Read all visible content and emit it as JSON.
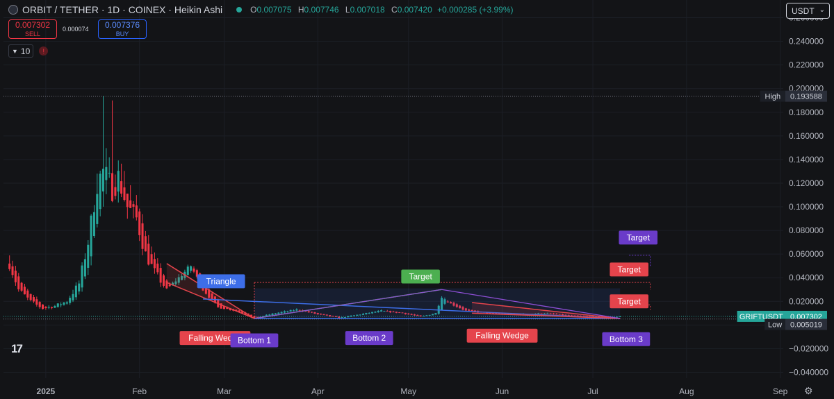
{
  "header": {
    "symbol": "ORBIT / TETHER · 1D · COINEX · Heikin Ashi",
    "o_label": "O",
    "o_value": "0.007075",
    "h_label": "H",
    "h_value": "0.007746",
    "l_label": "L",
    "l_value": "0.007018",
    "c_label": "C",
    "c_value": "0.007420",
    "change": "+0.000285 (+3.99%)"
  },
  "trade": {
    "sell_price": "0.007302",
    "sell_label": "SELL",
    "spread": "0.000074",
    "buy_price": "0.007376",
    "buy_label": "BUY"
  },
  "indicator": {
    "value": "10",
    "warning_icon": "warning-icon"
  },
  "currency": {
    "selected": "USDT"
  },
  "colors": {
    "up": "#26a69a",
    "down": "#f23645",
    "falling_wedge": "#e5444c",
    "triangle": "#3d6ee8",
    "target_green": "#4caf50",
    "bottom_purple": "#6a3bc9",
    "target_purple": "#6a3bc9"
  },
  "chart_data": {
    "type": "candlestick",
    "style": "Heikin Ashi",
    "timeframe": "1D",
    "y_ticks": [
      0.26,
      0.24,
      0.22,
      0.2,
      0.18,
      0.16,
      0.14,
      0.12,
      0.1,
      0.08,
      0.06,
      0.04,
      0.02,
      0,
      -0.02,
      -0.04
    ],
    "y_tick_labels": [
      "0.260000",
      "0.240000",
      "0.220000",
      "0.200000",
      "0.180000",
      "0.160000",
      "0.140000",
      "0.120000",
      "0.100000",
      "0.080000",
      "0.060000",
      "0.040000",
      "0.020000",
      "0.000000",
      "−0.020000",
      "−0.040000"
    ],
    "ylim": [
      -0.045,
      0.275
    ],
    "x_range": [
      "2024-12-18",
      "2025-09-02"
    ],
    "x_ticks": [
      {
        "date": "2025-01-01",
        "label": "2025"
      },
      {
        "date": "2025-02-01",
        "label": "Feb"
      },
      {
        "date": "2025-03-01",
        "label": "Mar"
      },
      {
        "date": "2025-04-01",
        "label": "Apr"
      },
      {
        "date": "2025-05-01",
        "label": "May"
      },
      {
        "date": "2025-06-01",
        "label": "Jun"
      },
      {
        "date": "2025-07-01",
        "label": "Jul"
      },
      {
        "date": "2025-08-01",
        "label": "Aug"
      },
      {
        "date": "2025-09-01",
        "label": "Sep"
      }
    ],
    "high": {
      "label": "High",
      "value": 0.193588,
      "value_text": "0.193588"
    },
    "low": {
      "label": "Low",
      "value": 0.005019,
      "value_text": "0.005019"
    },
    "last": {
      "label": "GRIFTUSDT",
      "value": 0.007302,
      "value_text": "0.007302"
    },
    "anchors": [
      [
        "2024-12-20",
        0.052
      ],
      [
        "2024-12-23",
        0.03
      ],
      [
        "2024-12-27",
        0.02
      ],
      [
        "2024-12-31",
        0.014
      ],
      [
        "2025-01-04",
        0.016
      ],
      [
        "2025-01-08",
        0.02
      ],
      [
        "2025-01-12",
        0.035
      ],
      [
        "2025-01-15",
        0.07
      ],
      [
        "2025-01-18",
        0.12
      ],
      [
        "2025-01-20",
        0.13
      ],
      [
        "2025-01-23",
        0.115
      ],
      [
        "2025-01-25",
        0.125
      ],
      [
        "2025-01-28",
        0.1
      ],
      [
        "2025-01-31",
        0.09
      ],
      [
        "2025-02-03",
        0.06
      ],
      [
        "2025-02-06",
        0.045
      ],
      [
        "2025-02-10",
        0.03
      ],
      [
        "2025-02-14",
        0.04
      ],
      [
        "2025-02-18",
        0.05
      ],
      [
        "2025-02-22",
        0.03
      ],
      [
        "2025-02-27",
        0.015
      ],
      [
        "2025-03-05",
        0.012
      ],
      [
        "2025-03-11",
        0.006
      ],
      [
        "2025-03-18",
        0.01
      ],
      [
        "2025-03-25",
        0.013
      ],
      [
        "2025-04-01",
        0.009
      ],
      [
        "2025-04-08",
        0.006
      ],
      [
        "2025-04-15",
        0.009
      ],
      [
        "2025-04-22",
        0.012
      ],
      [
        "2025-04-29",
        0.01
      ],
      [
        "2025-05-05",
        0.007
      ],
      [
        "2025-05-10",
        0.01
      ],
      [
        "2025-05-12",
        0.024
      ],
      [
        "2025-05-15",
        0.018
      ],
      [
        "2025-05-20",
        0.012
      ],
      [
        "2025-05-27",
        0.01
      ],
      [
        "2025-06-05",
        0.009
      ],
      [
        "2025-06-15",
        0.01
      ],
      [
        "2025-06-22",
        0.008
      ],
      [
        "2025-06-30",
        0.007
      ],
      [
        "2025-07-06",
        0.0065
      ],
      [
        "2025-07-10",
        0.0073
      ]
    ],
    "patterns": [
      {
        "label": "Falling Wedge",
        "type": "falling-wedge",
        "color": "#e5444c",
        "lines": [
          [
            [
              "2025-02-10",
              0.052
            ],
            [
              "2025-03-11",
              0.0055
            ]
          ],
          [
            [
              "2025-02-10",
              0.036
            ],
            [
              "2025-03-11",
              0.0055
            ]
          ]
        ],
        "fill": true,
        "label_at": [
          "2025-02-26",
          -0.011
        ]
      },
      {
        "label": "Triangle",
        "type": "triangle",
        "color": "#3d6ee8",
        "lines": [
          [
            [
              "2025-02-22",
              0.022
            ],
            [
              "2025-07-10",
              0.0055
            ]
          ],
          [
            [
              "2025-03-11",
              0.0055
            ],
            [
              "2025-07-10",
              0.0055
            ]
          ]
        ],
        "label_at": [
          "2025-02-28",
          0.037
        ]
      },
      {
        "label": "Target",
        "type": "target",
        "color": "#4caf50",
        "lines": [
          [
            [
              "2025-03-11",
              0.0055
            ],
            [
              "2025-05-12",
              0.03
            ]
          ]
        ],
        "box": [
          [
            "2025-03-11",
            0.031
          ],
          [
            "2025-07-10",
            0.0055
          ]
        ],
        "label_at": [
          "2025-05-05",
          0.041
        ]
      },
      {
        "label": "Falling Wedge",
        "type": "falling-wedge",
        "color": "#e5444c",
        "lines": [
          [
            [
              "2025-05-22",
              0.019
            ],
            [
              "2025-07-10",
              0.0055
            ]
          ],
          [
            [
              "2025-05-22",
              0.01
            ],
            [
              "2025-07-10",
              0.0055
            ]
          ]
        ],
        "fill": true,
        "label_at": [
          "2025-06-01",
          -0.009
        ]
      },
      {
        "label": "Bottom 1",
        "type": "bottom",
        "color": "#6a3bc9",
        "point": [
          "2025-03-11",
          0.0055
        ],
        "label_at": [
          "2025-03-11",
          -0.013
        ]
      },
      {
        "label": "Bottom 2",
        "type": "bottom",
        "color": "#6a3bc9",
        "point": [
          "2025-04-09",
          0.0055
        ],
        "label_at": [
          "2025-04-18",
          -0.011
        ]
      },
      {
        "label": "Bottom 3",
        "type": "bottom",
        "color": "#6a3bc9",
        "point": [
          "2025-07-10",
          0.0055
        ],
        "label_at": [
          "2025-07-12",
          -0.012
        ]
      },
      {
        "label": "Target",
        "type": "target",
        "color": "#e5444c",
        "label_at": [
          "2025-07-13",
          0.047
        ],
        "points": [
          [
            "2025-07-13",
            0.036
          ],
          [
            "2025-07-20",
            0.036
          ],
          [
            "2025-07-20",
            0.03
          ]
        ]
      },
      {
        "label": "Target",
        "type": "target",
        "color": "#e5444c",
        "label_at": [
          "2025-07-13",
          0.02
        ],
        "points": [
          [
            "2025-07-13",
            0.017
          ],
          [
            "2025-07-20",
            0.017
          ],
          [
            "2025-07-20",
            0.013
          ]
        ]
      },
      {
        "label": "Target",
        "type": "target",
        "color": "#6a3bc9",
        "label_at": [
          "2025-07-16",
          0.074
        ],
        "points": [
          [
            "2025-07-13",
            0.059
          ],
          [
            "2025-07-20",
            0.059
          ],
          [
            "2025-07-20",
            0.05
          ]
        ]
      }
    ],
    "pattern_lines": [
      {
        "color": "#8e4fd6",
        "points": [
          [
            "2025-05-12",
            0.03
          ],
          [
            "2025-07-10",
            0.0055
          ]
        ]
      },
      {
        "color": "#4caf50",
        "points": [
          [
            "2025-03-11",
            0.0055
          ],
          [
            "2025-05-12",
            0.03
          ]
        ]
      },
      {
        "color": "#8e4fd6",
        "points": [
          [
            "2025-03-11",
            0.0055
          ],
          [
            "2025-05-12",
            0.03
          ]
        ]
      },
      {
        "color": "#e5444c",
        "points": [
          [
            "2025-03-11",
            0.036
          ],
          [
            "2025-07-13",
            0.036
          ]
        ],
        "dotted": true
      },
      {
        "color": "#e5444c",
        "points": [
          [
            "2025-03-11",
            0.036
          ],
          [
            "2025-03-11",
            0.0055
          ]
        ],
        "dotted": true
      }
    ]
  }
}
